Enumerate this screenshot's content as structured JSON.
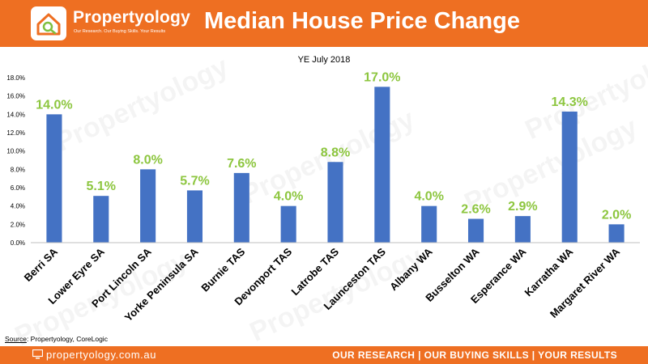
{
  "header": {
    "brand": "Propertyology",
    "tagline": "Our Research. Our Buying Skills. Your Results",
    "title": "Median House Price Change"
  },
  "watermark": "Propertyology",
  "chart_data": {
    "type": "bar",
    "title": "YE July 2018",
    "categories": [
      "Berri SA",
      "Lower Eyre SA",
      "Port Lincoln SA",
      "Yorke Peninsula SA",
      "Burnie TAS",
      "Devonport TAS",
      "Latrobe TAS",
      "Launceston TAS",
      "Albany WA",
      "Busselton WA",
      "Esperance WA",
      "Karratha WA",
      "Margaret River WA"
    ],
    "values": [
      14.0,
      5.1,
      8.0,
      5.7,
      7.6,
      4.0,
      8.8,
      17.0,
      4.0,
      2.6,
      2.9,
      14.3,
      2.0
    ],
    "data_labels": [
      "14.0%",
      "5.1%",
      "8.0%",
      "5.7%",
      "7.6%",
      "4.0%",
      "8.8%",
      "17.0%",
      "4.0%",
      "2.6%",
      "2.9%",
      "14.3%",
      "2.0%"
    ],
    "ylim": [
      0,
      18
    ],
    "yticks": [
      "0.0%",
      "2.0%",
      "4.0%",
      "6.0%",
      "8.0%",
      "10.0%",
      "12.0%",
      "14.0%",
      "16.0%",
      "18.0%"
    ],
    "bar_color": "#4472c4",
    "label_color": "#8dc63f",
    "grid": false,
    "legend": "none"
  },
  "source": {
    "label": "Source",
    "text": ": Propertyology, CoreLogic"
  },
  "footer": {
    "url": "propertyology.com.au",
    "tagline": "OUR RESEARCH | OUR BUYING SKILLS | YOUR RESULTS"
  },
  "colors": {
    "brand_orange": "#ee6f22"
  }
}
